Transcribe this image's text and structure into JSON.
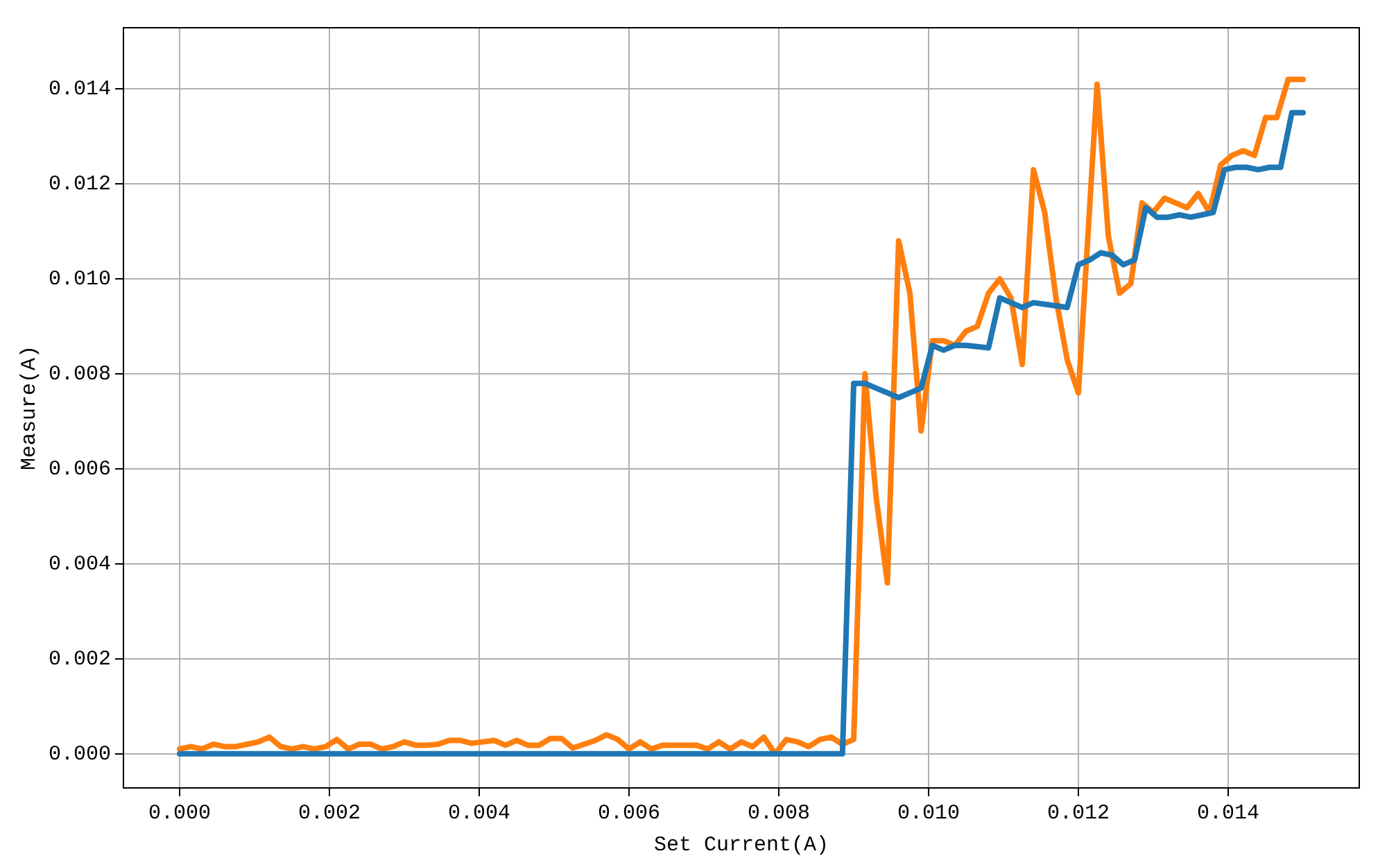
{
  "chart_data": {
    "type": "line",
    "xlabel": "Set Current(A)",
    "ylabel": "Measure(A)",
    "xlim": [
      -0.00075,
      0.01575
    ],
    "ylim": [
      -0.00072,
      0.01529
    ],
    "xticks": [
      {
        "value": 0,
        "label": "0.000"
      },
      {
        "value": 0.002,
        "label": "0.002"
      },
      {
        "value": 0.004,
        "label": "0.004"
      },
      {
        "value": 0.006,
        "label": "0.006"
      },
      {
        "value": 0.008,
        "label": "0.008"
      },
      {
        "value": 0.01,
        "label": "0.010"
      },
      {
        "value": 0.012,
        "label": "0.012"
      },
      {
        "value": 0.014,
        "label": "0.014"
      }
    ],
    "yticks": [
      {
        "value": 0,
        "label": "0.000"
      },
      {
        "value": 0.002,
        "label": "0.002"
      },
      {
        "value": 0.004,
        "label": "0.004"
      },
      {
        "value": 0.006,
        "label": "0.006"
      },
      {
        "value": 0.008,
        "label": "0.008"
      },
      {
        "value": 0.01,
        "label": "0.010"
      },
      {
        "value": 0.012,
        "label": "0.012"
      },
      {
        "value": 0.014,
        "label": "0.014"
      }
    ],
    "grid": true,
    "legend": false,
    "marker": "none",
    "line_style": "solid",
    "series": [
      {
        "color": "#1f77b4",
        "x": [
          0,
          0.00885,
          0.009,
          0.00915,
          0.0093,
          0.00945,
          0.0096,
          0.00975,
          0.0099,
          0.01005,
          0.0102,
          0.01035,
          0.0105,
          0.0108,
          0.01095,
          0.0111,
          0.01125,
          0.0114,
          0.01185,
          0.012,
          0.01215,
          0.0123,
          0.01245,
          0.0126,
          0.01275,
          0.0129,
          0.01305,
          0.0132,
          0.01335,
          0.0135,
          0.01365,
          0.0138,
          0.01395,
          0.0141,
          0.01425,
          0.0144,
          0.01455,
          0.0147,
          0.01485,
          0.015
        ],
        "values": [
          0,
          0,
          0.0078,
          0.0078,
          0.0077,
          0.0076,
          0.0075,
          0.0076,
          0.0077,
          0.0086,
          0.0085,
          0.0086,
          0.0086,
          0.00855,
          0.0096,
          0.0095,
          0.0094,
          0.0095,
          0.0094,
          0.0103,
          0.0104,
          0.01055,
          0.0105,
          0.0103,
          0.0104,
          0.0115,
          0.0113,
          0.0113,
          0.01135,
          0.0113,
          0.01135,
          0.0114,
          0.0123,
          0.01235,
          0.01235,
          0.0123,
          0.01235,
          0.01235,
          0.0135,
          0.0135
        ]
      },
      {
        "color": "#ff7f0e",
        "x": [
          0,
          0.00015,
          0.0003,
          0.00045,
          0.0006,
          0.00075,
          0.0009,
          0.00105,
          0.0012,
          0.00135,
          0.0015,
          0.00165,
          0.0018,
          0.00195,
          0.0021,
          0.00225,
          0.0024,
          0.00255,
          0.0027,
          0.00285,
          0.003,
          0.00315,
          0.0033,
          0.00345,
          0.0036,
          0.00375,
          0.0039,
          0.00405,
          0.0042,
          0.00435,
          0.0045,
          0.00465,
          0.0048,
          0.00495,
          0.0051,
          0.00525,
          0.0054,
          0.00555,
          0.0057,
          0.00585,
          0.006,
          0.00615,
          0.0063,
          0.00645,
          0.0066,
          0.00675,
          0.0069,
          0.00705,
          0.0072,
          0.00735,
          0.0075,
          0.00765,
          0.0078,
          0.00795,
          0.0081,
          0.00825,
          0.0084,
          0.00855,
          0.0087,
          0.00885,
          0.009,
          0.00915,
          0.0093,
          0.00945,
          0.0096,
          0.00975,
          0.0099,
          0.01005,
          0.0102,
          0.01035,
          0.0105,
          0.01065,
          0.0108,
          0.01095,
          0.0111,
          0.01125,
          0.0114,
          0.01155,
          0.0117,
          0.01185,
          0.012,
          0.01225,
          0.0124,
          0.01255,
          0.0127,
          0.01285,
          0.013,
          0.01315,
          0.0133,
          0.01345,
          0.0136,
          0.01375,
          0.0139,
          0.01405,
          0.0142,
          0.01435,
          0.0145,
          0.01465,
          0.0148,
          0.015
        ],
        "values": [
          0.0001,
          0.00015,
          0.0001,
          0.0002,
          0.00015,
          0.00015,
          0.0002,
          0.00025,
          0.00035,
          0.00015,
          0.0001,
          0.00015,
          0.0001,
          0.00015,
          0.0003,
          0.0001,
          0.0002,
          0.0002,
          0.0001,
          0.00015,
          0.00025,
          0.00018,
          0.00018,
          0.0002,
          0.00028,
          0.00028,
          0.00022,
          0.00025,
          0.00028,
          0.00018,
          0.00028,
          0.00018,
          0.00018,
          0.00032,
          0.00032,
          0.00012,
          0.0002,
          0.00028,
          0.0004,
          0.0003,
          0.0001,
          0.00025,
          0.0001,
          0.00018,
          0.00018,
          0.00018,
          0.00018,
          0.0001,
          0.00025,
          0.0001,
          0.00025,
          0.00015,
          0.00035,
          0,
          0.0003,
          0.00025,
          0.00015,
          0.0003,
          0.00035,
          0.0002,
          0.0003,
          0.008,
          0.0054,
          0.0036,
          0.0108,
          0.0097,
          0.0068,
          0.0087,
          0.0087,
          0.0086,
          0.0089,
          0.009,
          0.0097,
          0.01,
          0.0096,
          0.0082,
          0.0123,
          0.0114,
          0.0096,
          0.0083,
          0.0076,
          0.0141,
          0.0109,
          0.0097,
          0.0099,
          0.0116,
          0.0114,
          0.0117,
          0.0116,
          0.0115,
          0.0118,
          0.0114,
          0.0124,
          0.0126,
          0.0127,
          0.0126,
          0.0134,
          0.0134,
          0.0142,
          0.0142
        ]
      }
    ]
  }
}
